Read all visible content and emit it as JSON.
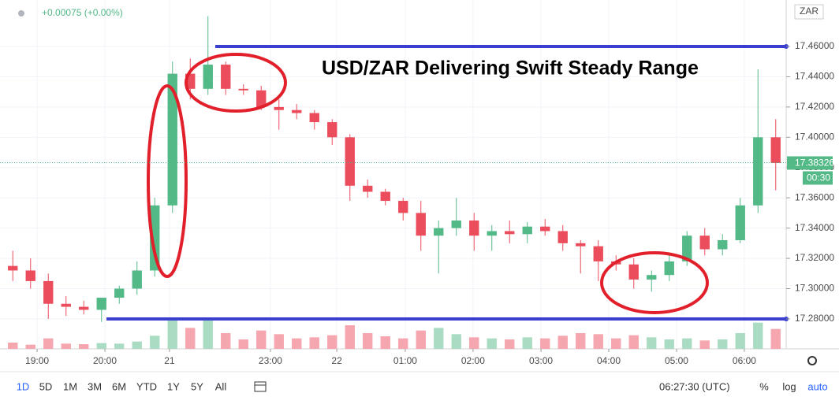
{
  "chart_data": {
    "type": "candlestick",
    "title": "USD/ZAR Delivering Swift Steady Range",
    "change": "+0.00075 (+0.00%)",
    "currency": "ZAR",
    "last_price": 17.38326,
    "countdown": "00:30",
    "up_color": "#53b987",
    "down_color": "#eb4d5c",
    "xlim": [
      0,
      44
    ],
    "ylim": [
      17.2602,
      17.4907
    ],
    "xticks": [
      {
        "value": 1.87,
        "label": "19:00"
      },
      {
        "value": 5.69,
        "label": "20:00"
      },
      {
        "value": 9.33,
        "label": "21"
      },
      {
        "value": 15.02,
        "label": "23:00"
      },
      {
        "value": 18.76,
        "label": "22"
      },
      {
        "value": 22.62,
        "label": "01:00"
      },
      {
        "value": 26.44,
        "label": "02:00"
      },
      {
        "value": 30.27,
        "label": "03:00"
      },
      {
        "value": 34.09,
        "label": "04:00"
      },
      {
        "value": 37.91,
        "label": "05:00"
      },
      {
        "value": 41.73,
        "label": "06:00"
      }
    ],
    "yticks": [
      {
        "value": 17.28,
        "label": "17.28000"
      },
      {
        "value": 17.3,
        "label": "17.30000"
      },
      {
        "value": 17.32,
        "label": "17.32000"
      },
      {
        "value": 17.34,
        "label": "17.34000"
      },
      {
        "value": 17.36,
        "label": "17.36000"
      },
      {
        "value": 17.38,
        "label": "17.38000"
      },
      {
        "value": 17.4,
        "label": "17.40000"
      },
      {
        "value": 17.42,
        "label": "17.42000"
      },
      {
        "value": 17.44,
        "label": "17.44000"
      },
      {
        "value": 17.46,
        "label": "17.46000"
      }
    ],
    "grid": true,
    "candles": {
      "x": [
        0.5,
        1.5,
        2.5,
        3.5,
        4.5,
        5.5,
        6.5,
        7.5,
        8.5,
        9.5,
        10.5,
        11.5,
        12.5,
        13.5,
        14.5,
        15.5,
        16.5,
        17.5,
        18.5,
        19.5,
        20.5,
        21.5,
        22.5,
        23.5,
        24.5,
        25.5,
        26.5,
        27.5,
        28.5,
        29.5,
        30.5,
        31.5,
        32.5,
        33.5,
        34.5,
        35.5,
        36.5,
        37.5,
        38.5,
        39.5,
        40.5,
        41.5,
        42.5,
        43.5
      ],
      "open": [
        17.315,
        17.312,
        17.305,
        17.29,
        17.288,
        17.286,
        17.294,
        17.3,
        17.312,
        17.355,
        17.442,
        17.432,
        17.448,
        17.432,
        17.431,
        17.42,
        17.418,
        17.416,
        17.41,
        17.4,
        17.368,
        17.364,
        17.358,
        17.35,
        17.335,
        17.34,
        17.345,
        17.335,
        17.338,
        17.336,
        17.341,
        17.338,
        17.33,
        17.328,
        17.318,
        17.316,
        17.306,
        17.309,
        17.318,
        17.335,
        17.326,
        17.332,
        17.355,
        17.4
      ],
      "high": [
        17.325,
        17.32,
        17.31,
        17.295,
        17.292,
        17.29,
        17.302,
        17.318,
        17.36,
        17.45,
        17.452,
        17.48,
        17.45,
        17.435,
        17.434,
        17.425,
        17.422,
        17.418,
        17.412,
        17.402,
        17.372,
        17.366,
        17.36,
        17.358,
        17.345,
        17.36,
        17.35,
        17.342,
        17.345,
        17.344,
        17.346,
        17.342,
        17.332,
        17.332,
        17.322,
        17.32,
        17.312,
        17.322,
        17.338,
        17.34,
        17.336,
        17.36,
        17.445,
        17.412
      ],
      "low": [
        17.305,
        17.3,
        17.28,
        17.282,
        17.283,
        17.278,
        17.29,
        17.296,
        17.308,
        17.35,
        17.425,
        17.428,
        17.428,
        17.428,
        17.418,
        17.405,
        17.412,
        17.405,
        17.395,
        17.358,
        17.36,
        17.355,
        17.345,
        17.325,
        17.31,
        17.335,
        17.325,
        17.325,
        17.33,
        17.33,
        17.335,
        17.325,
        17.31,
        17.305,
        17.312,
        17.3,
        17.298,
        17.305,
        17.315,
        17.322,
        17.322,
        17.33,
        17.35,
        17.365
      ],
      "close": [
        17.312,
        17.305,
        17.29,
        17.288,
        17.286,
        17.294,
        17.3,
        17.312,
        17.355,
        17.442,
        17.432,
        17.448,
        17.432,
        17.431,
        17.42,
        17.418,
        17.416,
        17.41,
        17.4,
        17.368,
        17.364,
        17.358,
        17.35,
        17.335,
        17.34,
        17.345,
        17.335,
        17.338,
        17.336,
        17.341,
        17.338,
        17.33,
        17.328,
        17.318,
        17.316,
        17.306,
        17.309,
        17.318,
        17.335,
        17.326,
        17.332,
        17.355,
        17.4,
        17.383
      ]
    },
    "volume": [
      12,
      8,
      20,
      10,
      9,
      11,
      10,
      14,
      25,
      60,
      40,
      55,
      30,
      18,
      35,
      28,
      20,
      22,
      26,
      45,
      30,
      24,
      20,
      35,
      40,
      28,
      22,
      20,
      18,
      22,
      20,
      25,
      30,
      28,
      20,
      26,
      22,
      18,
      20,
      16,
      18,
      30,
      50,
      38
    ],
    "volume_up_color": "#a9dcc3",
    "volume_down_color": "#f5a6ae",
    "levels": [
      {
        "value": 17.46,
        "x_start": 11.91,
        "color": "#3a3fcf"
      },
      {
        "value": 17.28,
        "x_start": 5.78,
        "color": "#3a3fcf"
      }
    ],
    "timeframes": [
      "1D",
      "5D",
      "1M",
      "3M",
      "6M",
      "YTD",
      "1Y",
      "5Y",
      "All"
    ],
    "clock": "06:27:30 (UTC)",
    "scale_buttons": [
      "%",
      "log",
      "auto"
    ]
  }
}
